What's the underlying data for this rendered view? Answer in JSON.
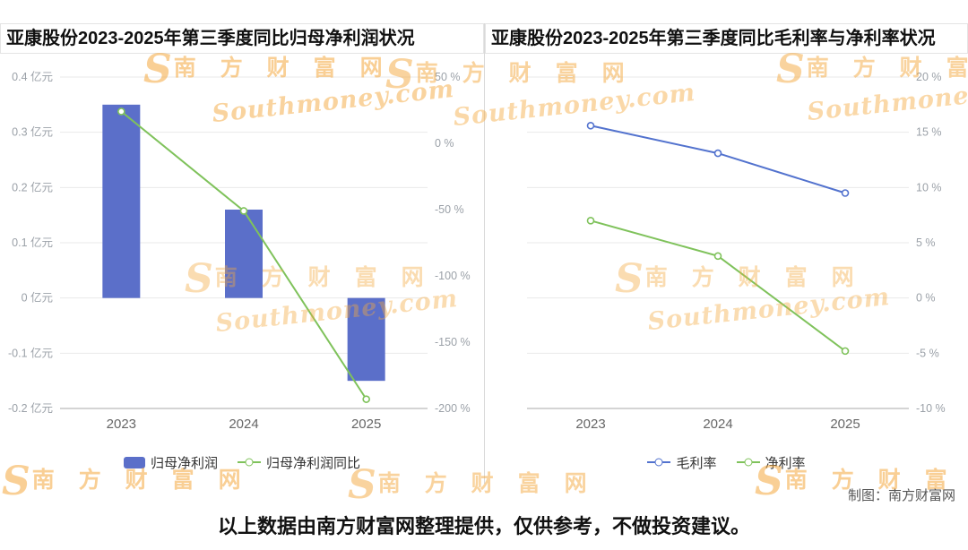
{
  "watermark": {
    "logo": "S",
    "cn": "南 方 财 富 网",
    "en": "Southmoney.com"
  },
  "footer": {
    "credit": "制图：南方财富网",
    "disclaimer": "以上数据由南方财富网整理提供，仅供参考，不做投资建议。"
  },
  "colors": {
    "bar_blue": "#5B6FC9",
    "line_green": "#7FC25B",
    "line_blue": "#5272CE",
    "watermark_orange": "#F5A93F"
  },
  "chart_data": [
    {
      "type": "bar",
      "title": "亚康股份2023-2025年第三季度同比归母净利润状况",
      "categories": [
        "2023",
        "2024",
        "2025"
      ],
      "legend_position": "bottom",
      "axes": {
        "left": {
          "unit": "亿元",
          "min": -0.2,
          "max": 0.4,
          "grid": true,
          "ticks": [
            {
              "v": 0.4,
              "l": "0.4 亿元"
            },
            {
              "v": 0.3,
              "l": "0.3 亿元"
            },
            {
              "v": 0.2,
              "l": "0.2 亿元"
            },
            {
              "v": 0.1,
              "l": "0.1 亿元"
            },
            {
              "v": 0,
              "l": "0 亿元"
            },
            {
              "v": -0.1,
              "l": "-0.1 亿元"
            },
            {
              "v": -0.2,
              "l": "-0.2 亿元"
            }
          ]
        },
        "right": {
          "unit": "%",
          "min": -200,
          "max": 50,
          "grid": false,
          "ticks": [
            {
              "v": 50,
              "l": "50 %"
            },
            {
              "v": 0,
              "l": "0 %"
            },
            {
              "v": -50,
              "l": "-50 %"
            },
            {
              "v": -100,
              "l": "-100 %"
            },
            {
              "v": -150,
              "l": "-150 %"
            },
            {
              "v": -200,
              "l": "-200 %"
            }
          ]
        }
      },
      "series": [
        {
          "name": "归母净利润",
          "type": "bar",
          "axis": "left",
          "color": "#5B6FC9",
          "values": [
            0.35,
            0.16,
            -0.15
          ]
        },
        {
          "name": "归母净利润同比",
          "type": "line",
          "axis": "right",
          "color": "#7FC25B",
          "values": [
            24,
            -51,
            -193
          ]
        }
      ]
    },
    {
      "type": "line",
      "title": "亚康股份2023-2025年第三季度同比毛利率与净利率状况",
      "categories": [
        "2023",
        "2024",
        "2025"
      ],
      "legend_position": "bottom",
      "axes": {
        "right": {
          "unit": "%",
          "min": -10,
          "max": 20,
          "grid": true,
          "ticks": [
            {
              "v": 20,
              "l": "20 %"
            },
            {
              "v": 15,
              "l": "15 %"
            },
            {
              "v": 10,
              "l": "10 %"
            },
            {
              "v": 5,
              "l": "5 %"
            },
            {
              "v": 0,
              "l": "0 %"
            },
            {
              "v": -5,
              "l": "-5 %"
            },
            {
              "v": -10,
              "l": "-10 %"
            }
          ]
        }
      },
      "series": [
        {
          "name": "毛利率",
          "type": "line",
          "axis": "right",
          "color": "#5272CE",
          "values": [
            15.6,
            13.1,
            9.5
          ]
        },
        {
          "name": "净利率",
          "type": "line",
          "axis": "right",
          "color": "#7FC25B",
          "values": [
            7.0,
            3.8,
            -4.8
          ]
        }
      ]
    }
  ]
}
